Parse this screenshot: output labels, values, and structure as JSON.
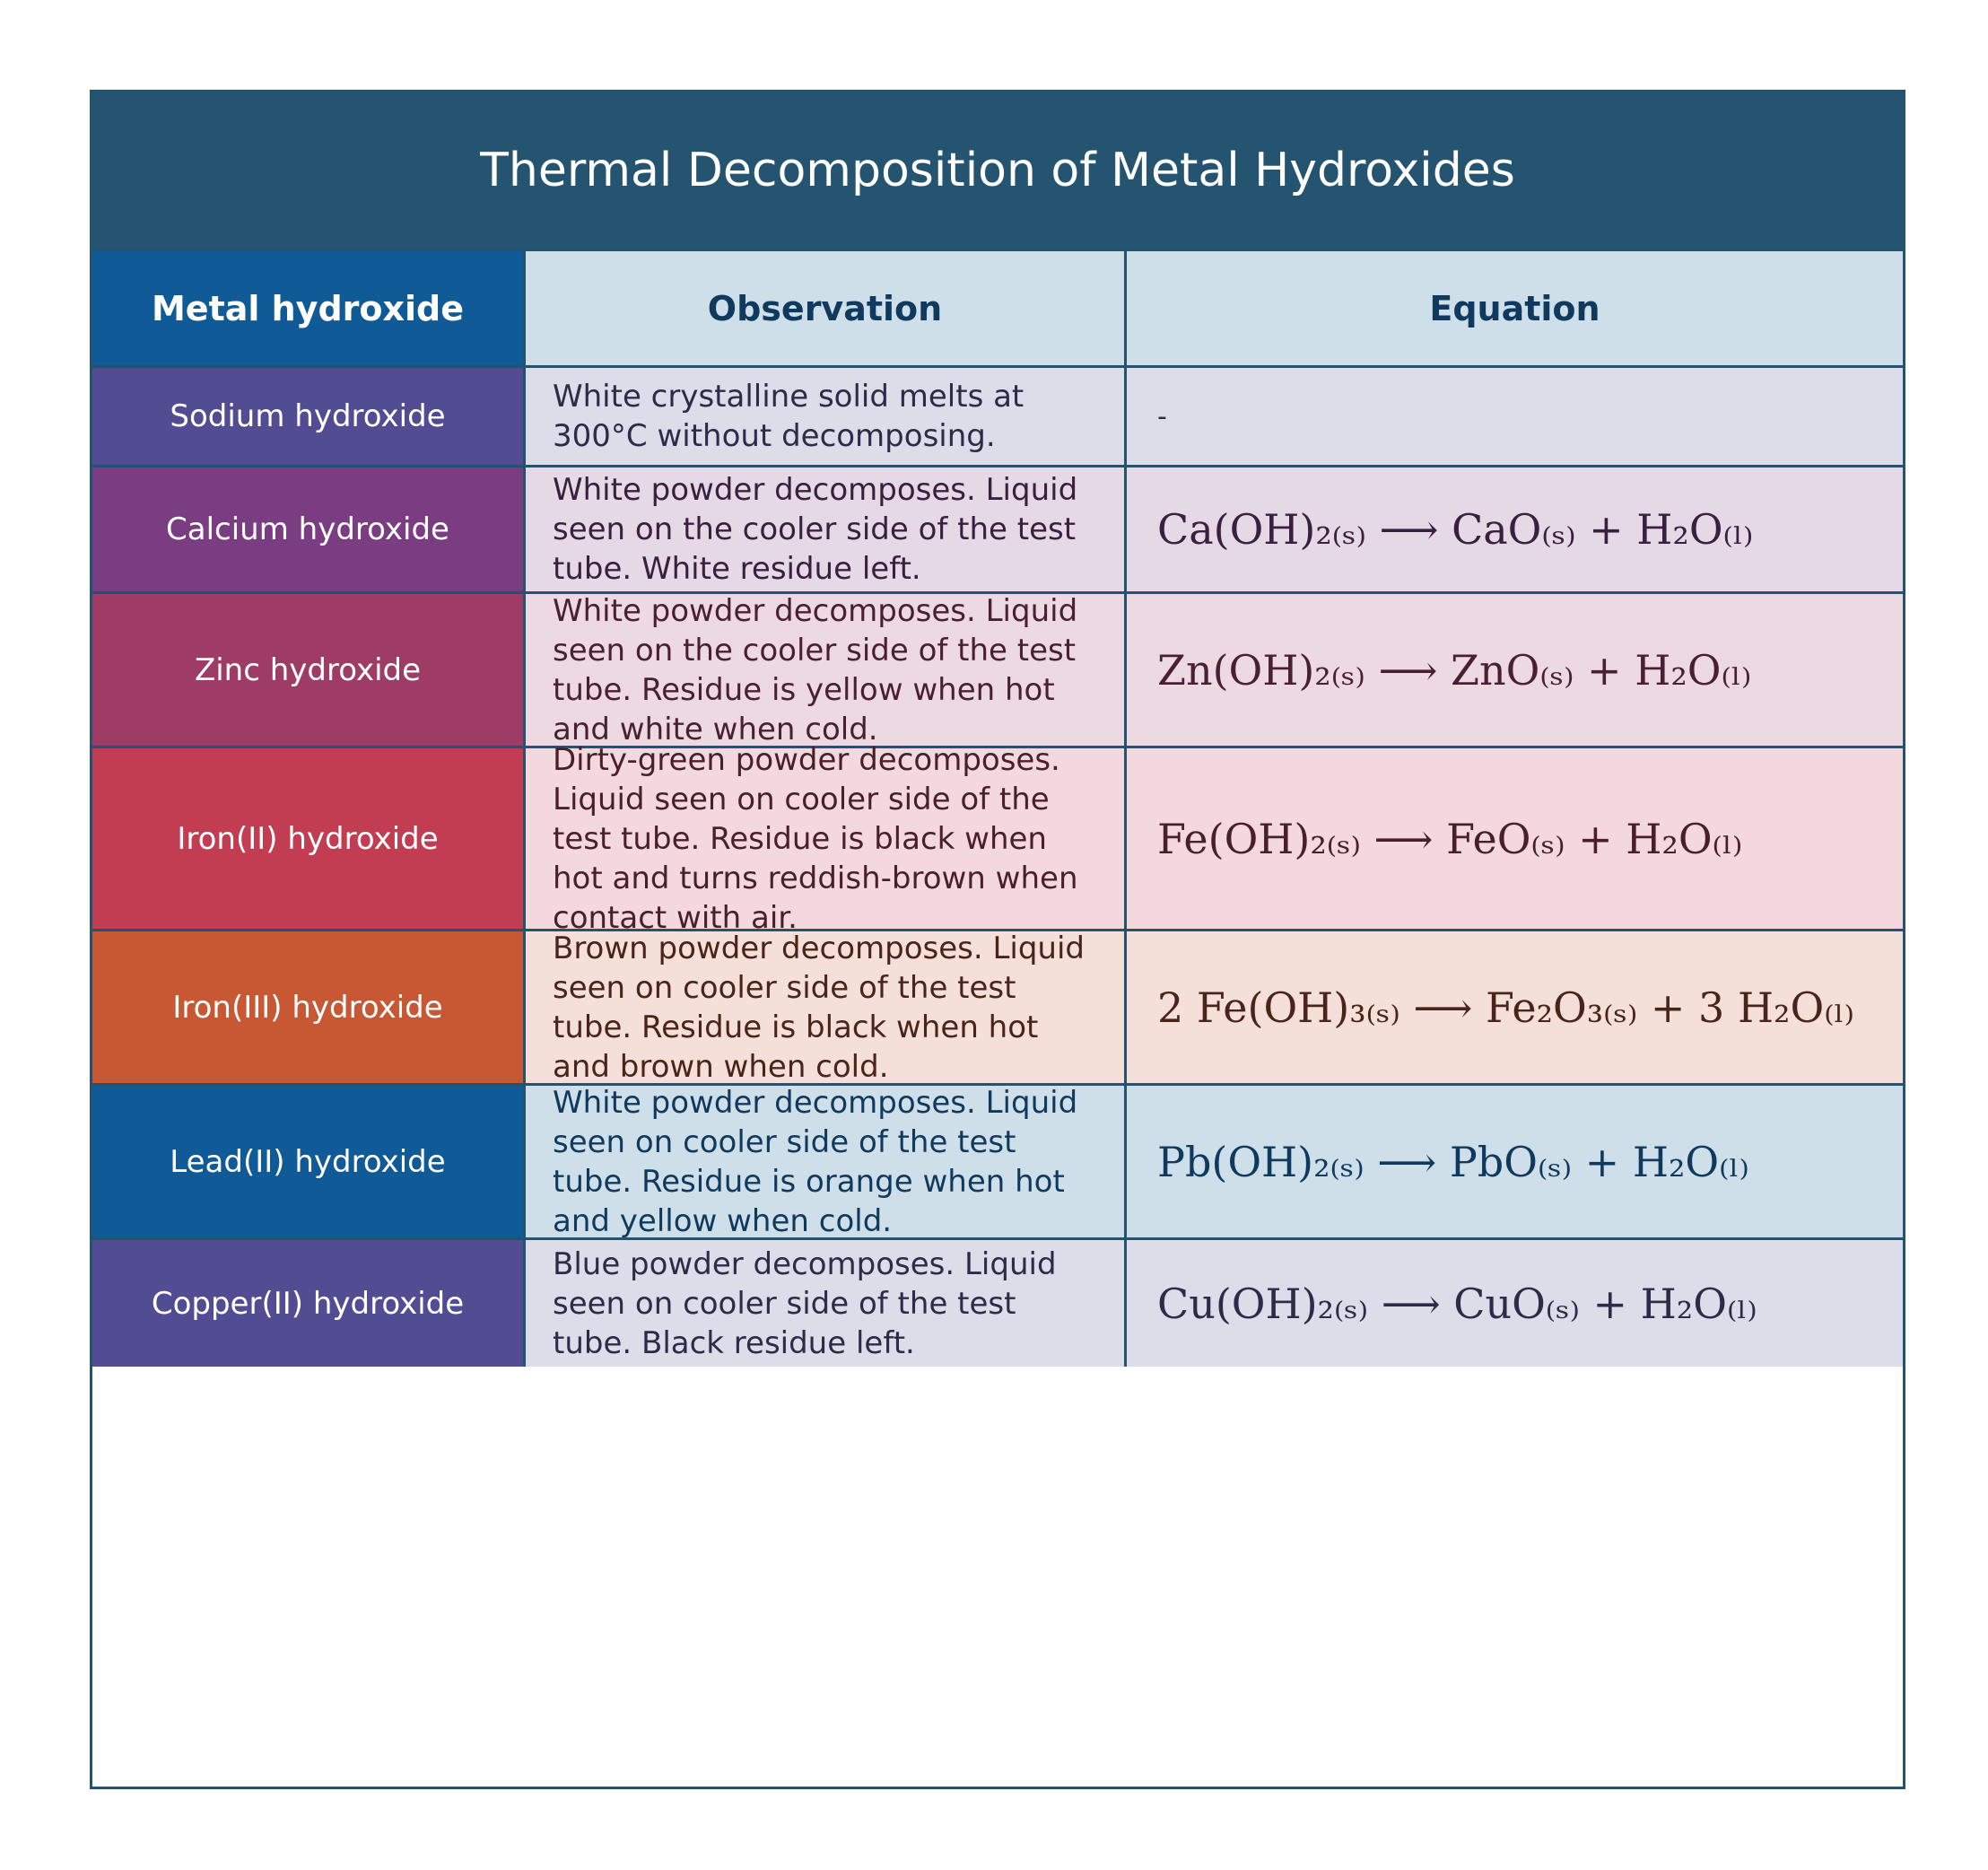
{
  "title": "Thermal Decomposition of Metal Hydroxides",
  "headers": {
    "name": "Metal hydroxide",
    "observation": "Observation",
    "equation": "Equation"
  },
  "rows": [
    {
      "name": "Sodium hydroxide",
      "observation": "White crystalline solid melts at 300°C without decomposing.",
      "equation": "-",
      "name_bg": "#524d92",
      "cell_bg": "#dddde9",
      "text_color": "#2b2b4a"
    },
    {
      "name": "Calcium hydroxide",
      "observation": "White powder decomposes. Liquid seen on the cooler side of the test tube. White residue left.",
      "equation": "Ca(OH)₂₍ₛ₎ ⟶ CaO₍ₛ₎ + H₂O₍ₗ₎",
      "name_bg": "#7b3d81",
      "cell_bg": "#e5d9e5",
      "text_color": "#3a2040"
    },
    {
      "name": "Zinc hydroxide",
      "observation": "White powder decomposes. Liquid seen on the cooler side of the test tube. Residue is yellow when hot and white when cold.",
      "equation": "Zn(OH)₂₍ₛ₎ ⟶ ZnO₍ₛ₎ + H₂O₍ₗ₎",
      "name_bg": "#9f3c66",
      "cell_bg": "#edd9e2",
      "text_color": "#4a1f33"
    },
    {
      "name": "Iron(II) hydroxide",
      "observation": "Dirty-green powder decomposes. Liquid seen on cooler side of the test tube. Residue is black when hot and turns reddish-brown when contact with air.",
      "equation": "Fe(OH)₂₍ₛ₎ ⟶ FeO₍ₛ₎ + H₂O₍ₗ₎",
      "name_bg": "#c23d52",
      "cell_bg": "#f3d9de",
      "text_color": "#4a1f27"
    },
    {
      "name": "Iron(III) hydroxide",
      "observation": "Brown powder decomposes. Liquid seen on cooler side of the test tube. Residue is black when hot and brown when cold.",
      "equation": "2 Fe(OH)₃₍ₛ₎ ⟶ Fe₂O₃₍ₛ₎ + 3 H₂O₍ₗ₎",
      "name_bg": "#c85733",
      "cell_bg": "#f4dfd9",
      "text_color": "#4a2418"
    },
    {
      "name": "Lead(II) hydroxide",
      "observation": "White powder decomposes. Liquid seen on cooler side of the test tube. Residue is orange when hot and yellow when cold.",
      "equation": "Pb(OH)₂₍ₛ₎ ⟶ PbO₍ₛ₎ + H₂O₍ₗ₎",
      "name_bg": "#0f5a97",
      "cell_bg": "#cfdfea",
      "text_color": "#0f3a5e"
    },
    {
      "name": "Copper(II) hydroxide",
      "observation": "Blue powder decomposes. Liquid seen on cooler side of the test tube. Black residue left.",
      "equation": "Cu(OH)₂₍ₛ₎ ⟶ CuO₍ₛ₎ + H₂O₍ₗ₎",
      "name_bg": "#524d92",
      "cell_bg": "#dddde9",
      "text_color": "#2b2b4a"
    }
  ]
}
